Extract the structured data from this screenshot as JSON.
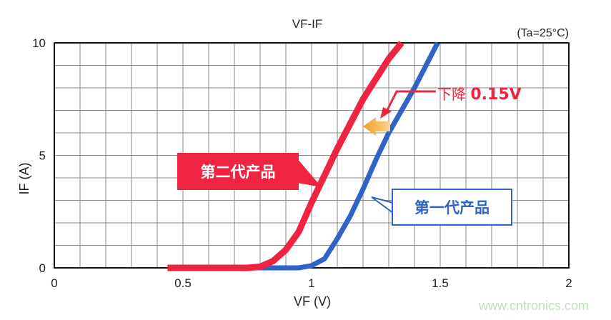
{
  "chart_data": {
    "type": "line",
    "title": "VF-IF",
    "condition": "(Ta=25°C)",
    "xlabel": "VF (V)",
    "ylabel": "IF (A)",
    "xlim": [
      0,
      2
    ],
    "ylim": [
      0,
      10
    ],
    "xticks": [
      "0",
      "0.5",
      "1",
      "1.5",
      "2"
    ],
    "yticks": [
      "0",
      "5",
      "10"
    ],
    "grid": true,
    "series": [
      {
        "name": "第二代产品",
        "color": "#ee2440",
        "x": [
          0.44,
          0.75,
          0.8,
          0.85,
          0.9,
          0.95,
          1.0,
          1.05,
          1.1,
          1.2,
          1.3,
          1.35
        ],
        "y": [
          0,
          0,
          0.05,
          0.3,
          0.8,
          1.6,
          2.9,
          4.1,
          5.3,
          7.5,
          9.3,
          10
        ]
      },
      {
        "name": "第一代产品",
        "color": "#2f63c6",
        "x": [
          0.75,
          0.95,
          1.0,
          1.05,
          1.1,
          1.15,
          1.2,
          1.25,
          1.3,
          1.4,
          1.49
        ],
        "y": [
          0,
          0,
          0.1,
          0.4,
          1.3,
          2.3,
          3.5,
          4.8,
          6.0,
          8.0,
          10
        ]
      }
    ],
    "annotations": {
      "drop_text": "下降",
      "drop_value": "0.15V",
      "gen2_label": "第二代产品",
      "gen1_label": "第一代产品"
    }
  },
  "watermark": "www.cntronics.com"
}
